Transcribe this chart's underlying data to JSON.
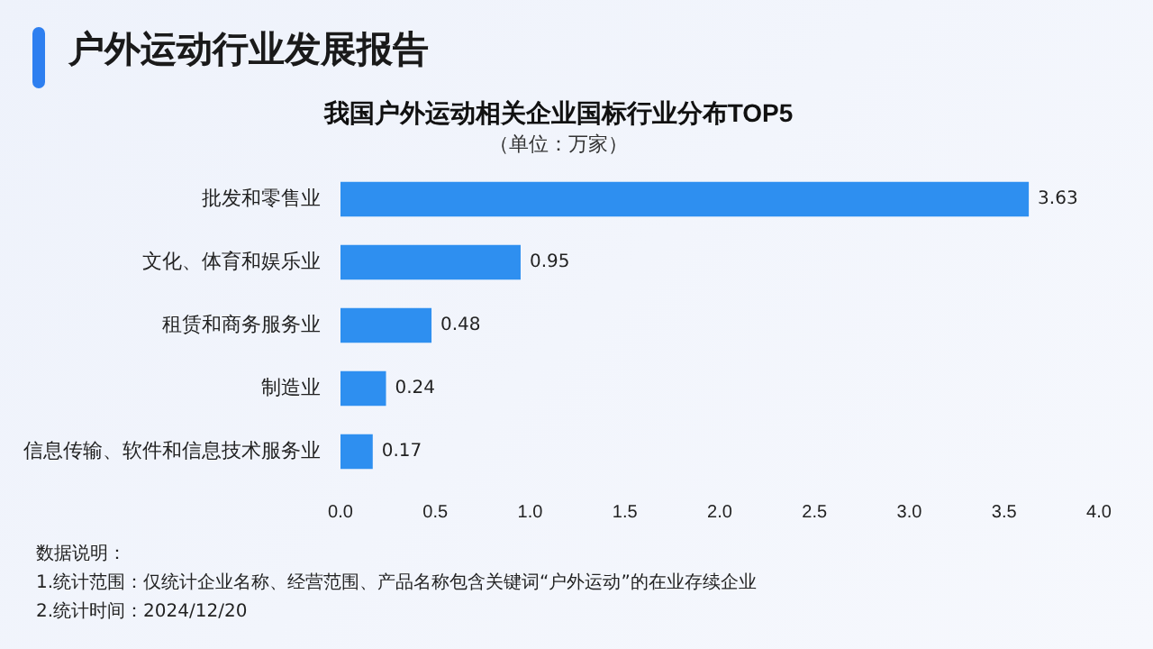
{
  "chart_data": {
    "type": "bar",
    "orientation": "horizontal",
    "title": "户外运动行业发展报告",
    "subtitle": "我国户外运动相关企业国标行业分布TOP5",
    "xlabel": "（单位：万家）",
    "categories": [
      "批发和零售业",
      "文化、体育和娱乐业",
      "租赁和商务服务业",
      "制造业",
      "信息传输、软件和信息技术服务业"
    ],
    "values": [
      3.63,
      0.95,
      0.48,
      0.24,
      0.17
    ],
    "color": "#2e8ff0",
    "data_labels": true,
    "grid": false,
    "legend": false,
    "xlim": [
      0,
      4
    ],
    "xticks": [
      {
        "value": 0,
        "label": "0.0"
      },
      {
        "value": 0.5,
        "label": "0.5"
      },
      {
        "value": 1,
        "label": "1.0"
      },
      {
        "value": 1.5,
        "label": "1.5"
      },
      {
        "value": 2,
        "label": "2.0"
      },
      {
        "value": 2.5,
        "label": "2.5"
      },
      {
        "value": 3,
        "label": "3.0"
      },
      {
        "value": 3.5,
        "label": "3.5"
      },
      {
        "value": 4,
        "label": "4.0"
      }
    ],
    "annotations": [
      "数据说明：",
      "1.统计范围：仅统计企业名称、经营范围、产品名称包含关键词“户外运动”的在业存续企业",
      "2.统计时间：2024/12/20"
    ]
  }
}
